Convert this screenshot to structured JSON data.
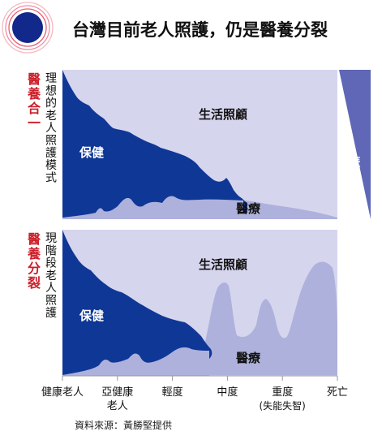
{
  "title": "台灣目前老人照護，仍是醫養分裂",
  "colors": {
    "navy": "#0f3796",
    "lavender": "#aeb1dc",
    "panel_bg": "#d6d5ee",
    "red": "#cc1f2a",
    "grey_line": "#999999"
  },
  "panels": [
    {
      "side_label_red": "醫養合一",
      "side_label_black": "理想的老人照護模式",
      "life_care_label": "生活照顧",
      "health_label": "保健",
      "medical_label": "醫療"
    },
    {
      "side_label_red": "醫養分裂",
      "side_label_black": "現階段老人照護",
      "life_care_label": "生活照顧",
      "health_label": "保健",
      "medical_label": "醫療"
    }
  ],
  "hospice_label": "悲傷輔導",
  "x_labels": [
    {
      "line1": "健康老人",
      "line2": ""
    },
    {
      "line1": "亞健康",
      "line2": "老人"
    },
    {
      "line1": "輕度",
      "line2": ""
    },
    {
      "line1": "中度",
      "line2": ""
    },
    {
      "line1": "重度",
      "line2": "(失能失智)"
    },
    {
      "line1": "死亡",
      "line2": ""
    }
  ],
  "source": "資料來源：黃勝堅提供",
  "chart_data": [
    {
      "type": "area",
      "title": "醫養合一",
      "categories": [
        "健康老人",
        "亞健康老人",
        "輕度",
        "中度",
        "重度(失能失智)",
        "死亡"
      ],
      "series": [
        {
          "name": "保健",
          "values": [
            0.95,
            0.62,
            0.4,
            0.12,
            0.0,
            0.0
          ]
        },
        {
          "name": "醫療",
          "values": [
            0.04,
            0.09,
            0.1,
            0.1,
            0.08,
            0.0
          ]
        }
      ]
    },
    {
      "type": "area",
      "title": "醫養分裂",
      "categories": [
        "健康老人",
        "亞健康老人",
        "輕度",
        "中度",
        "重度(失能失智)",
        "死亡"
      ],
      "series": [
        {
          "name": "保健",
          "values": [
            0.95,
            0.55,
            0.4,
            0.1,
            0.0,
            0.0
          ]
        },
        {
          "name": "醫療",
          "values": [
            0.04,
            0.1,
            0.12,
            0.55,
            0.72,
            0.0
          ]
        }
      ]
    }
  ]
}
